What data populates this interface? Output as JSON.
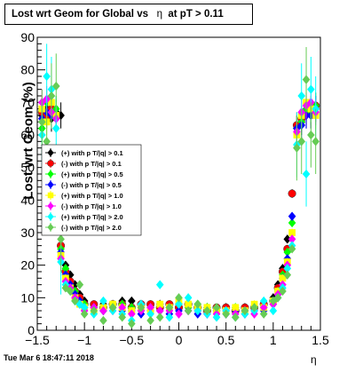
{
  "title_prefix": "Lost wrt Geom for Global vs",
  "title_eta": "η",
  "title_suffix": "at pT > 0.11",
  "ylabel": "Lost wrt Geom (%)",
  "xlabel": "η",
  "timestamp": "Tue Mar  6 18:47:11 2018",
  "chart_data": {
    "type": "scatter",
    "title": "Lost wrt Geom for Global vs η at pT > 0.11",
    "xlabel": "η",
    "ylabel": "Lost wrt Geom (%)",
    "xlim": [
      -1.5,
      1.5
    ],
    "ylim": [
      0,
      90
    ],
    "x_ticks": [
      -1.5,
      -1,
      -0.5,
      0,
      0.5,
      1,
      1.5
    ],
    "x_tick_labels": [
      "−1.5",
      "−1",
      "−0.5",
      "0",
      "0.5",
      "1",
      "1.5"
    ],
    "y_ticks": [
      0,
      10,
      20,
      30,
      40,
      50,
      60,
      70,
      80,
      90
    ],
    "grid": true,
    "legend_position": "left",
    "series": [
      {
        "name": "(+) with p T/|q| > 0.1",
        "color": "#000000",
        "marker": "diamond",
        "x": [
          -1.45,
          -1.4,
          -1.35,
          -1.3,
          -1.25,
          -1.2,
          -1.15,
          -1.1,
          -1.05,
          -1.0,
          -0.9,
          -0.8,
          -0.7,
          -0.6,
          -0.5,
          -0.4,
          -0.3,
          -0.2,
          -0.1,
          0.0,
          0.1,
          0.2,
          0.3,
          0.4,
          0.5,
          0.6,
          0.7,
          0.8,
          0.9,
          1.0,
          1.05,
          1.1,
          1.15,
          1.2,
          1.25,
          1.3,
          1.35,
          1.4,
          1.45
        ],
        "y": [
          66,
          68,
          65,
          67,
          66,
          20,
          17,
          14,
          11,
          9,
          7,
          8,
          8,
          9,
          9,
          8,
          7,
          8,
          7,
          8,
          7,
          6,
          7,
          6,
          7,
          6,
          7,
          7,
          8,
          10,
          14,
          19,
          28,
          42,
          62,
          64,
          66,
          66,
          68
        ]
      },
      {
        "name": "(-) with p T/|q| > 0.1",
        "color": "#ff0000",
        "marker": "circle",
        "x": [
          -1.45,
          -1.4,
          -1.35,
          -1.3,
          -1.25,
          -1.2,
          -1.15,
          -1.1,
          -1.05,
          -1.0,
          -0.9,
          -0.8,
          -0.7,
          -0.6,
          -0.5,
          -0.4,
          -0.3,
          -0.2,
          -0.1,
          0.0,
          0.1,
          0.2,
          0.3,
          0.4,
          0.5,
          0.6,
          0.7,
          0.8,
          0.9,
          1.0,
          1.05,
          1.1,
          1.15,
          1.2,
          1.25,
          1.3,
          1.35,
          1.4,
          1.45
        ],
        "y": [
          67,
          66,
          68,
          34,
          26,
          18,
          15,
          12,
          10,
          8,
          8,
          7,
          8,
          8,
          7,
          8,
          8,
          7,
          8,
          7,
          8,
          7,
          6,
          7,
          7,
          6,
          7,
          7,
          8,
          9,
          13,
          18,
          25,
          42,
          63,
          65,
          67,
          68,
          69
        ]
      },
      {
        "name": "(+) with p T/|q| > 0.5",
        "color": "#00ff00",
        "marker": "diamond",
        "x": [
          -1.45,
          -1.4,
          -1.35,
          -1.3,
          -1.25,
          -1.2,
          -1.15,
          -1.1,
          -1.05,
          -1.0,
          -0.9,
          -0.8,
          -0.7,
          -0.6,
          -0.5,
          -0.4,
          -0.3,
          -0.2,
          -0.1,
          0.0,
          0.1,
          0.2,
          0.3,
          0.4,
          0.5,
          0.6,
          0.7,
          0.8,
          0.9,
          1.0,
          1.05,
          1.1,
          1.15,
          1.2,
          1.25,
          1.3,
          1.35,
          1.4,
          1.45
        ],
        "y": [
          62,
          70,
          66,
          68,
          25,
          19,
          14,
          12,
          9,
          8,
          7,
          6,
          7,
          8,
          7,
          6,
          7,
          6,
          7,
          8,
          7,
          8,
          7,
          6,
          6,
          7,
          6,
          7,
          7,
          9,
          12,
          17,
          24,
          33,
          62,
          64,
          68,
          67,
          69
        ]
      },
      {
        "name": "(-) with p T/|q| > 0.5",
        "color": "#0000ff",
        "marker": "diamond",
        "x": [
          -1.45,
          -1.4,
          -1.35,
          -1.3,
          -1.25,
          -1.2,
          -1.15,
          -1.1,
          -1.05,
          -1.0,
          -0.9,
          -0.8,
          -0.7,
          -0.6,
          -0.5,
          -0.4,
          -0.3,
          -0.2,
          -0.1,
          0.0,
          0.1,
          0.2,
          0.3,
          0.4,
          0.5,
          0.6,
          0.7,
          0.8,
          0.9,
          1.0,
          1.05,
          1.1,
          1.15,
          1.2,
          1.25,
          1.3,
          1.35,
          1.4,
          1.45
        ],
        "y": [
          65,
          67,
          66,
          65,
          24,
          17,
          14,
          11,
          9,
          7,
          7,
          6,
          7,
          6,
          6,
          5,
          6,
          6,
          5,
          6,
          6,
          5,
          5,
          6,
          5,
          6,
          5,
          6,
          6,
          8,
          11,
          16,
          22,
          35,
          62,
          63,
          66,
          66,
          68
        ]
      },
      {
        "name": "(+) with p T/|q| > 1.0",
        "color": "#ffff00",
        "marker": "square",
        "x": [
          -1.45,
          -1.4,
          -1.35,
          -1.3,
          -1.25,
          -1.2,
          -1.15,
          -1.1,
          -1.05,
          -1.0,
          -0.9,
          -0.8,
          -0.7,
          -0.6,
          -0.5,
          -0.4,
          -0.3,
          -0.2,
          -0.1,
          0.0,
          0.1,
          0.2,
          0.3,
          0.4,
          0.5,
          0.6,
          0.7,
          0.8,
          0.9,
          1.0,
          1.05,
          1.1,
          1.15,
          1.2,
          1.25,
          1.3,
          1.35,
          1.4,
          1.45
        ],
        "y": [
          68,
          64,
          70,
          66,
          23,
          16,
          13,
          10,
          8,
          7,
          6,
          7,
          8,
          7,
          6,
          7,
          6,
          8,
          7,
          9,
          8,
          7,
          7,
          6,
          6,
          7,
          6,
          8,
          7,
          9,
          12,
          16,
          21,
          30,
          60,
          66,
          70,
          68,
          66
        ]
      },
      {
        "name": "(-) with p T/|q| > 1.0",
        "color": "#ff00ff",
        "marker": "diamond",
        "x": [
          -1.45,
          -1.4,
          -1.35,
          -1.3,
          -1.25,
          -1.2,
          -1.15,
          -1.1,
          -1.05,
          -1.0,
          -0.9,
          -0.8,
          -0.7,
          -0.6,
          -0.5,
          -0.4,
          -0.3,
          -0.2,
          -0.1,
          0.0,
          0.1,
          0.2,
          0.3,
          0.4,
          0.5,
          0.6,
          0.7,
          0.8,
          0.9,
          1.0,
          1.05,
          1.1,
          1.15,
          1.2,
          1.25,
          1.3,
          1.35,
          1.4,
          1.45
        ],
        "y": [
          70,
          71,
          67,
          65,
          22,
          15,
          13,
          10,
          8,
          6,
          7,
          6,
          6,
          7,
          5,
          6,
          7,
          6,
          6,
          5,
          6,
          6,
          5,
          5,
          6,
          5,
          6,
          5,
          7,
          8,
          11,
          14,
          20,
          28,
          61,
          67,
          69,
          70,
          67
        ]
      },
      {
        "name": "(+) with p T/|q| > 2.0",
        "color": "#00ffff",
        "marker": "diamond",
        "x": [
          -1.45,
          -1.4,
          -1.35,
          -1.3,
          -1.25,
          -1.2,
          -1.15,
          -1.1,
          -1.05,
          -1.0,
          -0.9,
          -0.8,
          -0.7,
          -0.6,
          -0.5,
          -0.4,
          -0.3,
          -0.2,
          -0.1,
          0.0,
          0.1,
          0.2,
          0.3,
          0.4,
          0.5,
          0.6,
          0.7,
          0.8,
          0.9,
          1.0,
          1.05,
          1.1,
          1.15,
          1.2,
          1.25,
          1.3,
          1.35,
          1.4,
          1.45
        ],
        "y": [
          60,
          78,
          74,
          62,
          21,
          14,
          12,
          9,
          8,
          7,
          5,
          9,
          6,
          5,
          3,
          8,
          5,
          14,
          4,
          8,
          10,
          6,
          5,
          4,
          6,
          4,
          5,
          6,
          9,
          6,
          10,
          13,
          19,
          26,
          57,
          72,
          48,
          74,
          68
        ]
      },
      {
        "name": "(-) with p T/|q| > 2.0",
        "color": "#66cc55",
        "marker": "diamond",
        "x": [
          -1.45,
          -1.4,
          -1.35,
          -1.3,
          -1.25,
          -1.2,
          -1.15,
          -1.1,
          -1.05,
          -1.0,
          -0.9,
          -0.8,
          -0.7,
          -0.6,
          -0.5,
          -0.4,
          -0.3,
          -0.2,
          -0.1,
          0.0,
          0.1,
          0.2,
          0.3,
          0.4,
          0.5,
          0.6,
          0.7,
          0.8,
          0.9,
          1.0,
          1.05,
          1.1,
          1.15,
          1.2,
          1.25,
          1.3,
          1.35,
          1.4,
          1.45
        ],
        "y": [
          64,
          58,
          72,
          75,
          28,
          13,
          12,
          9,
          14,
          5,
          6,
          3,
          7,
          4,
          2,
          7,
          3,
          4,
          7,
          10,
          6,
          8,
          6,
          7,
          5,
          4,
          6,
          7,
          5,
          9,
          10,
          12,
          17,
          25,
          56,
          58,
          77,
          60,
          58
        ]
      }
    ]
  }
}
